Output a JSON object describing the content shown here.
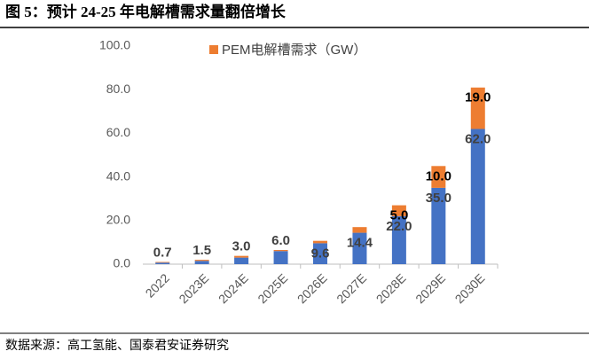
{
  "title": "图 5：预计 24-25 年电解槽需求量翻倍增长",
  "source": "数据来源：高工氢能、国泰君安证券研究",
  "chart_data": {
    "type": "stacked_bar",
    "categories": [
      "2022",
      "2023E",
      "2024E",
      "2025E",
      "2026E",
      "2027E",
      "2028E",
      "2029E",
      "2030E"
    ],
    "series": [
      {
        "color": "#4472c4",
        "values": [
          0.7,
          1.5,
          3.0,
          6.0,
          9.6,
          14.4,
          22.0,
          35.0,
          62.0
        ],
        "value_labels": [
          "0.7",
          "1.5",
          "3.0",
          "6.0",
          "9.6",
          "14.4",
          "22.0",
          "35.0",
          "62.0"
        ]
      },
      {
        "name": "PEM电解槽需求（GW）",
        "color": "#ed7d31",
        "values": [
          0.3,
          0.5,
          0.8,
          0.5,
          1.1,
          2.6,
          5.0,
          10.0,
          19.0
        ],
        "value_labels": [
          null,
          null,
          null,
          null,
          null,
          null,
          "5.0",
          "10.0",
          "19.0"
        ]
      }
    ],
    "ylim": [
      0,
      100
    ],
    "yticks": [
      {
        "value": 0,
        "label": "0.0"
      },
      {
        "value": 20,
        "label": "20.0"
      },
      {
        "value": 40,
        "label": "40.0"
      },
      {
        "value": 60,
        "label": "60.0"
      },
      {
        "value": 80,
        "label": "80.0"
      },
      {
        "value": 100,
        "label": "100.0"
      }
    ],
    "legend": "top"
  }
}
